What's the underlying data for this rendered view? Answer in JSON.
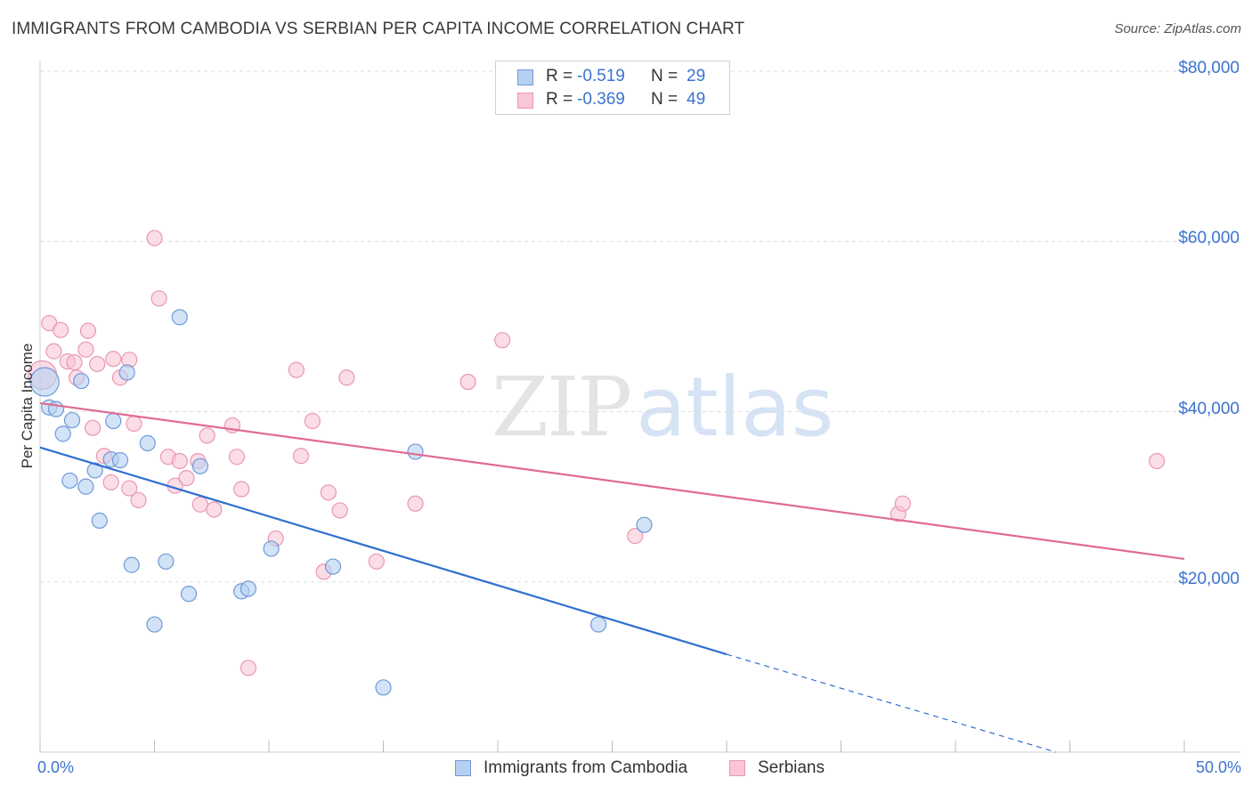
{
  "title": "IMMIGRANTS FROM CAMBODIA VS SERBIAN PER CAPITA INCOME CORRELATION CHART",
  "source": "Source: ZipAtlas.com",
  "watermark": {
    "zip": "ZIP",
    "atlas": "atlas"
  },
  "legend": {
    "rows": [
      {
        "r_label": "R =",
        "r_value": "-0.519",
        "n_label": "N =",
        "n_value": "29"
      },
      {
        "r_label": "R =",
        "r_value": "-0.369",
        "n_label": "N =",
        "n_value": "49"
      }
    ]
  },
  "colors": {
    "cambodia_fill": "#b6d0f2",
    "cambodia_stroke": "#6f9ad8",
    "cambodia_line": "#2f6fd0",
    "serbian_fill": "#f8c6d6",
    "serbian_stroke": "#e898b3",
    "serbian_line": "#e06b94",
    "tick_label": "#3b73d0",
    "grid": "#dddddd"
  },
  "chart_data": {
    "type": "scatter",
    "ylabel": "Per Capita Income",
    "xlim": [
      0,
      50
    ],
    "ylim": [
      0,
      80000
    ],
    "x_tick_labels": {
      "min": "0.0%",
      "max": "50.0%"
    },
    "y_ticks": [
      {
        "value": 20000,
        "label": "$20,000"
      },
      {
        "value": 40000,
        "label": "$40,000"
      },
      {
        "value": 60000,
        "label": "$60,000"
      },
      {
        "value": 80000,
        "label": "$80,000"
      }
    ],
    "grid": true,
    "legend_position": "top-center",
    "series": [
      {
        "name": "Immigrants from Cambodia",
        "color": "#6f9ad8",
        "points": [
          [
            0.2,
            43500
          ],
          [
            0.4,
            40500
          ],
          [
            0.7,
            40300
          ],
          [
            1.0,
            37400
          ],
          [
            1.4,
            39000
          ],
          [
            1.3,
            31900
          ],
          [
            2.0,
            31200
          ],
          [
            2.4,
            33100
          ],
          [
            2.6,
            27200
          ],
          [
            3.1,
            34400
          ],
          [
            3.2,
            38900
          ],
          [
            3.5,
            34300
          ],
          [
            3.8,
            44600
          ],
          [
            4.0,
            22000
          ],
          [
            4.7,
            36300
          ],
          [
            5.0,
            15000
          ],
          [
            5.5,
            22400
          ],
          [
            6.1,
            51100
          ],
          [
            6.5,
            18600
          ],
          [
            7.0,
            33600
          ],
          [
            8.8,
            18900
          ],
          [
            9.1,
            19200
          ],
          [
            10.1,
            23900
          ],
          [
            12.8,
            21800
          ],
          [
            15.0,
            7600
          ],
          [
            16.4,
            35300
          ],
          [
            24.4,
            15000
          ],
          [
            26.4,
            26700
          ],
          [
            1.8,
            43600
          ]
        ],
        "trend": {
          "x0": 0,
          "y0": 35800,
          "x1": 30.0,
          "y1": 11500,
          "dash_x1": 44.4,
          "dash_y1": 0
        }
      },
      {
        "name": "Serbians",
        "color": "#e898b3",
        "points": [
          [
            0.1,
            44300
          ],
          [
            0.4,
            50400
          ],
          [
            0.6,
            47100
          ],
          [
            0.9,
            49600
          ],
          [
            1.2,
            45900
          ],
          [
            1.5,
            45800
          ],
          [
            1.6,
            44000
          ],
          [
            2.0,
            47300
          ],
          [
            2.1,
            49500
          ],
          [
            2.3,
            38100
          ],
          [
            2.5,
            45600
          ],
          [
            2.8,
            34800
          ],
          [
            3.1,
            31700
          ],
          [
            3.2,
            46200
          ],
          [
            3.5,
            44000
          ],
          [
            3.9,
            31000
          ],
          [
            3.9,
            46100
          ],
          [
            4.1,
            38600
          ],
          [
            4.3,
            29600
          ],
          [
            5.0,
            60400
          ],
          [
            5.2,
            53300
          ],
          [
            5.6,
            34700
          ],
          [
            5.9,
            31300
          ],
          [
            6.1,
            34200
          ],
          [
            6.4,
            32200
          ],
          [
            6.9,
            34200
          ],
          [
            7.0,
            29100
          ],
          [
            7.3,
            37200
          ],
          [
            7.6,
            28500
          ],
          [
            8.4,
            38400
          ],
          [
            8.6,
            34700
          ],
          [
            8.8,
            30900
          ],
          [
            9.1,
            9900
          ],
          [
            10.3,
            25100
          ],
          [
            11.2,
            44900
          ],
          [
            11.4,
            34800
          ],
          [
            11.9,
            38900
          ],
          [
            12.4,
            21200
          ],
          [
            12.6,
            30500
          ],
          [
            13.1,
            28400
          ],
          [
            13.4,
            44000
          ],
          [
            14.7,
            22400
          ],
          [
            16.4,
            29200
          ],
          [
            18.7,
            43500
          ],
          [
            20.2,
            48400
          ],
          [
            26.0,
            25400
          ],
          [
            37.5,
            28000
          ],
          [
            37.7,
            29200
          ],
          [
            48.8,
            34200
          ]
        ],
        "trend": {
          "x0": 0,
          "y0": 41000,
          "x1": 50.0,
          "y1": 22700
        }
      }
    ]
  },
  "bottom_legend": [
    {
      "label": "Immigrants from Cambodia"
    },
    {
      "label": "Serbians"
    }
  ]
}
